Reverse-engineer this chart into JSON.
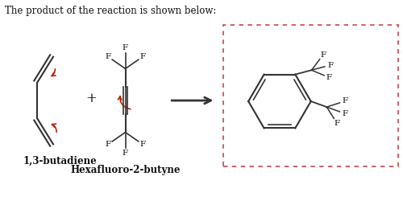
{
  "title": "The product of the reaction is shown below:",
  "label_butadiene": "1,3-butadiene",
  "label_hexafluoro": "Hexafluoro-2-butyne",
  "bg_color": "#ffffff",
  "text_color": "#111111",
  "red_color": "#bb2200",
  "bond_color": "#333333",
  "dashed_box_color": "#cc5555",
  "title_fontsize": 8.5,
  "label_fontsize": 8,
  "bold_fontsize": 8.5
}
